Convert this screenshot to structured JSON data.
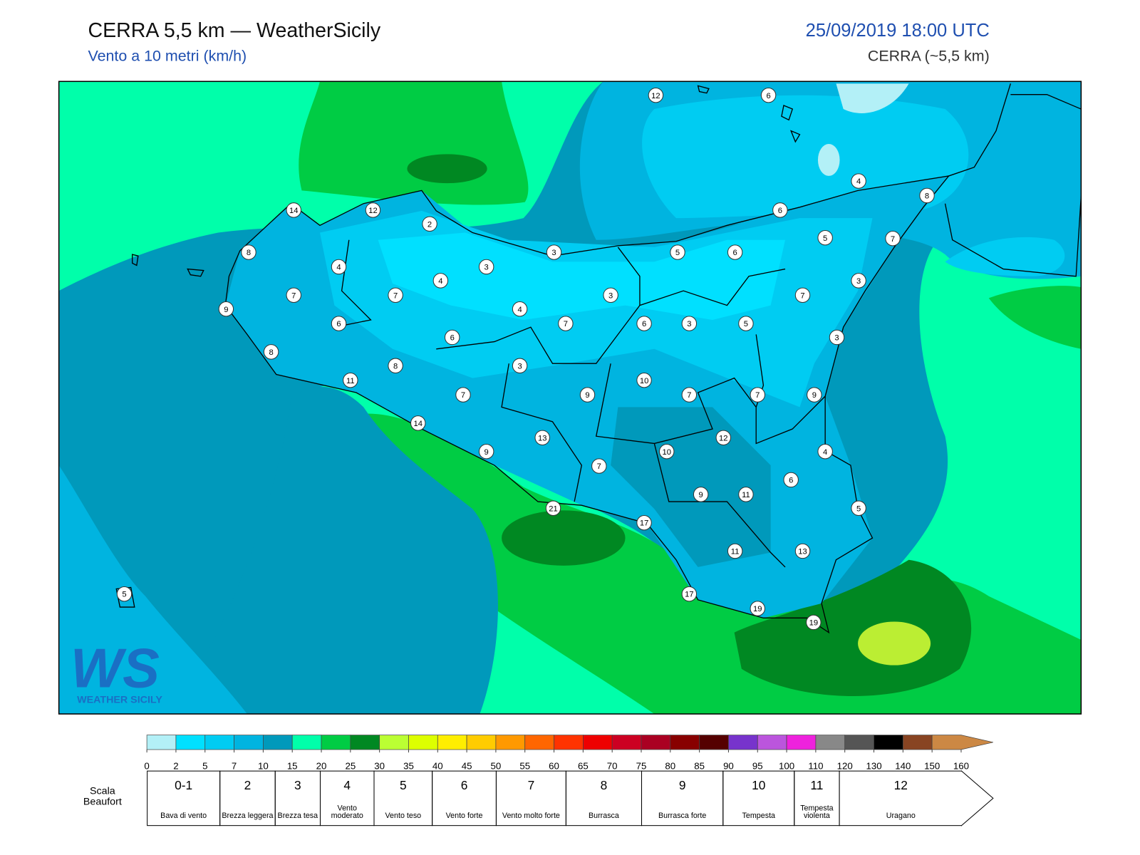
{
  "header": {
    "title": "CERRA 5,5 km — WeatherSicily",
    "subtitle": "Vento a 10 metri (km/h)",
    "date": "25/09/2019 18:00 UTC",
    "model": "CERRA (~5,5 km)"
  },
  "map": {
    "stations": [
      12,
      6,
      4,
      8,
      14,
      12,
      2,
      6,
      5,
      7,
      8,
      4,
      3,
      3,
      5,
      6,
      4,
      7,
      7,
      3,
      7,
      3,
      9,
      4,
      6,
      7,
      6,
      3,
      5,
      6,
      3,
      8,
      8,
      3,
      11,
      10,
      7,
      9,
      7,
      7,
      9,
      14,
      13,
      12,
      9,
      10,
      4,
      7,
      6,
      9,
      11,
      5,
      21,
      17,
      11,
      13,
      5,
      17,
      19,
      19
    ]
  },
  "colorbar": {
    "ticks": [
      0,
      2,
      5,
      7,
      10,
      15,
      20,
      25,
      30,
      35,
      40,
      45,
      50,
      55,
      60,
      65,
      70,
      75,
      80,
      85,
      90,
      95,
      100,
      110,
      120,
      130,
      140,
      150,
      160
    ],
    "colors": [
      "#b3f0f7",
      "#00e0ff",
      "#00ccf2",
      "#00b4e0",
      "#0099bb",
      "#00ffaa",
      "#00cc44",
      "#008822",
      "#bbff33",
      "#ddff00",
      "#ffee00",
      "#ffcc00",
      "#ff9900",
      "#ff6600",
      "#ff3300",
      "#ee0000",
      "#cc0022",
      "#aa0022",
      "#880000",
      "#550000",
      "#7733cc",
      "#bb55dd",
      "#ee22dd",
      "#888888",
      "#555555",
      "#000000",
      "#884422",
      "#cc8844"
    ]
  },
  "beaufort": {
    "title": "Scala Beaufort",
    "levels": [
      {
        "force": "0-1",
        "label": "Bava di vento"
      },
      {
        "force": "2",
        "label": "Brezza leggera"
      },
      {
        "force": "3",
        "label": "Brezza tesa"
      },
      {
        "force": "4",
        "label": "Vento moderato"
      },
      {
        "force": "5",
        "label": "Vento teso"
      },
      {
        "force": "6",
        "label": "Vento forte"
      },
      {
        "force": "7",
        "label": "Vento molto forte"
      },
      {
        "force": "8",
        "label": "Burrasca"
      },
      {
        "force": "9",
        "label": "Burrasca forte"
      },
      {
        "force": "10",
        "label": "Tempesta"
      },
      {
        "force": "11",
        "label": "Tempesta violenta"
      },
      {
        "force": "12",
        "label": "Uragano"
      }
    ]
  },
  "logo": {
    "mark": "WS",
    "name": "WEATHER SICILY"
  }
}
